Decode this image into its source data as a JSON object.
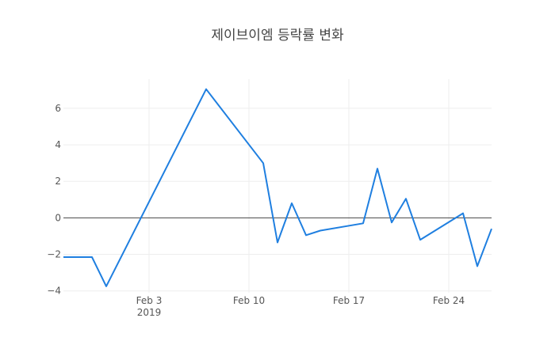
{
  "chart_data": {
    "type": "line",
    "title": "제이브이엠 등락률 변화",
    "xlabel": "",
    "ylabel": "",
    "x": [
      "2019-01-28",
      "2019-01-30",
      "2019-01-31",
      "2019-02-07",
      "2019-02-11",
      "2019-02-12",
      "2019-02-13",
      "2019-02-14",
      "2019-02-15",
      "2019-02-18",
      "2019-02-19",
      "2019-02-20",
      "2019-02-21",
      "2019-02-22",
      "2019-02-25",
      "2019-02-26",
      "2019-02-27"
    ],
    "series": [
      {
        "values": [
          -2.15,
          -2.15,
          -3.75,
          7.05,
          3.0,
          -1.35,
          0.8,
          -0.95,
          -0.7,
          -0.3,
          2.7,
          -0.25,
          1.05,
          -1.2,
          0.25,
          -2.65,
          -0.6
        ]
      }
    ],
    "xlim": [
      "2019-01-28",
      "2019-02-27"
    ],
    "ylim": [
      -4.1,
      7.6
    ],
    "x_ticks": [
      {
        "date": "2019-02-03",
        "label": "Feb 3",
        "sublabel": "2019"
      },
      {
        "date": "2019-02-10",
        "label": "Feb 10"
      },
      {
        "date": "2019-02-17",
        "label": "Feb 17"
      },
      {
        "date": "2019-02-24",
        "label": "Feb 24"
      }
    ],
    "y_ticks": [
      -4,
      -2,
      0,
      2,
      4,
      6
    ],
    "y_tick_labels": [
      "−4",
      "−2",
      "0",
      "2",
      "4",
      "6"
    ],
    "grid": true,
    "legend": "none",
    "colors": {
      "series": "#1f7fe0",
      "zero_line": "#444444",
      "grid": "#eeeeee",
      "text": "#444444"
    }
  }
}
